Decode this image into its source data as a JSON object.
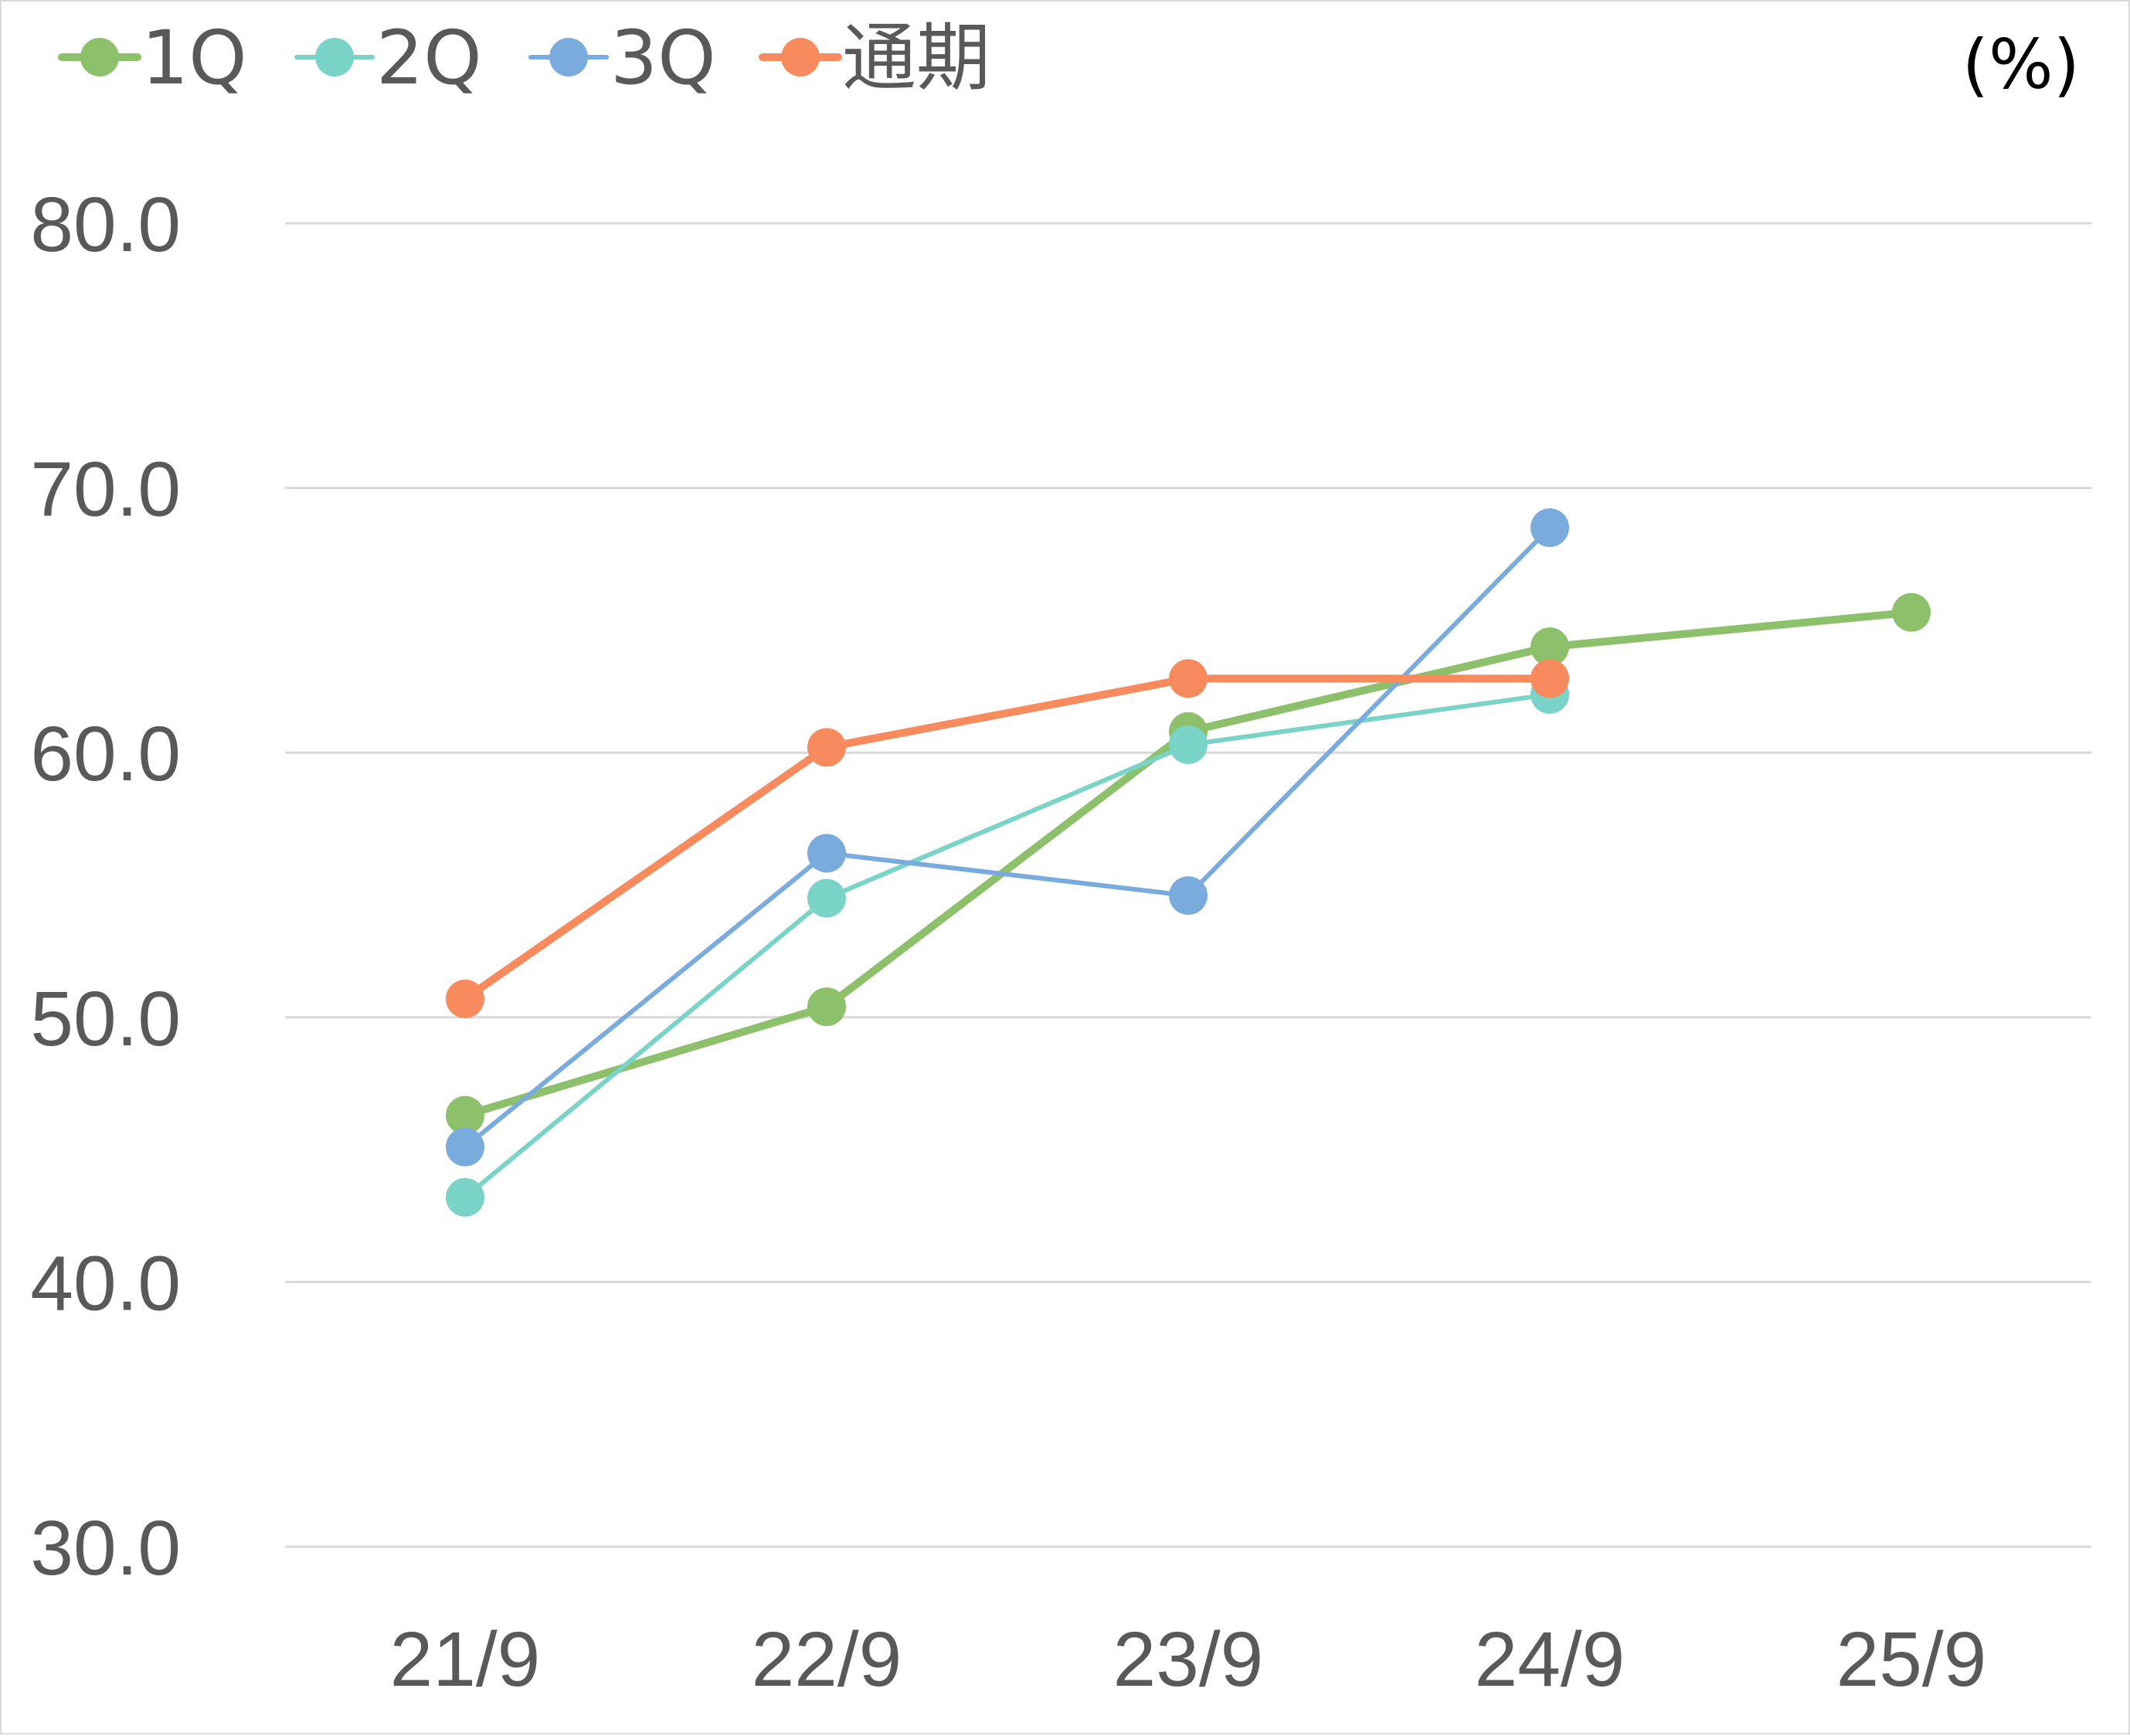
{
  "chart_data": {
    "type": "line",
    "title": "",
    "unit_label": "(%)",
    "xlabel": "",
    "ylabel": "",
    "categories": [
      "21/9",
      "22/9",
      "23/9",
      "24/9",
      "25/9"
    ],
    "ylim": [
      30,
      80
    ],
    "y_ticks": [
      30,
      40,
      50,
      60,
      70,
      80
    ],
    "y_tick_labels": [
      "30.0",
      "40.0",
      "50.0",
      "60.0",
      "70.0",
      "80.0"
    ],
    "grid": true,
    "legend_position": "top-left",
    "series": [
      {
        "name": "1Q",
        "color": "#8cc06b",
        "line_width": "thick",
        "values": [
          46.3,
          50.4,
          60.8,
          64.0,
          65.3
        ]
      },
      {
        "name": "2Q",
        "color": "#79d3c7",
        "line_width": "thin",
        "values": [
          43.2,
          54.5,
          60.3,
          62.2,
          null
        ]
      },
      {
        "name": "3Q",
        "color": "#79abdd",
        "line_width": "thin",
        "values": [
          45.1,
          56.2,
          54.6,
          68.5,
          null
        ]
      },
      {
        "name": "通期",
        "color": "#f78b5d",
        "line_width": "thick",
        "values": [
          50.7,
          60.2,
          62.8,
          62.8,
          null
        ]
      }
    ]
  }
}
